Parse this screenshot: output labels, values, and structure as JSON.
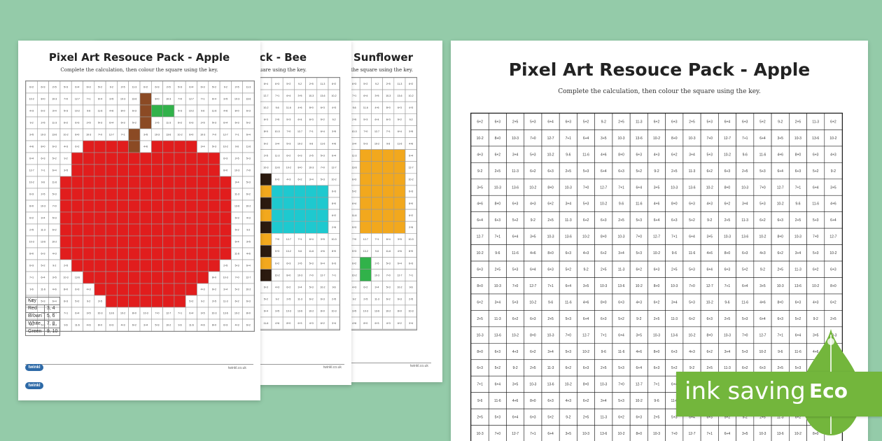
{
  "sheets": [
    {
      "title": "Pixel Art Resouce Pack - Sunflower",
      "subtitle": "Complete the calculation, then colour the square using the key."
    },
    {
      "title": "Pixel Art Resouce Pack - Bee",
      "subtitle": "Complete the calculation, then colour the square using the key."
    },
    {
      "title": "Pixel Art Resouce Pack - Apple",
      "subtitle": "Complete the calculation, then colour the square using the key."
    }
  ],
  "main_sheet": {
    "title": "Pixel Art Resouce Pack - Apple",
    "subtitle": "Complete the calculation, then colour the square using the key."
  },
  "key": {
    "header": "Key",
    "rows": [
      {
        "colour": "Red",
        "numbers": "3, 4"
      },
      {
        "colour": "Brown",
        "numbers": "5, 6"
      },
      {
        "colour": "White",
        "numbers": "7, 8"
      },
      {
        "colour": "Green",
        "numbers": "9, 10"
      }
    ]
  },
  "logo_text": "twinkl",
  "footer_text": "twinkl.co.uk",
  "badge": {
    "label": "ink saving",
    "eco": "Eco"
  },
  "grid_cells": [
    "6+2",
    "10-3",
    "11-6",
    "6+3",
    "13-6",
    "4+6",
    "2+5",
    "10-2",
    "8+0",
    "5+3",
    "8+0",
    "6+3",
    "6+4",
    "10-3",
    "4+3",
    "6+3",
    "7+0",
    "6+2",
    "5+2",
    "12-7",
    "3+4",
    "9-2",
    "7+1",
    "5+3",
    "2+5",
    "6+4",
    "10-2",
    "11-3",
    "3+5",
    "9-6"
  ],
  "apple_colours": {
    "red": "#e11d1d",
    "brown": "#8b4a24",
    "green": "#31b24a",
    "cyan": "#1ec9cf",
    "black": "#2b1a0f",
    "yellow": "#f2a81d",
    "badge": "#73b63c",
    "background": "#94cba9"
  }
}
